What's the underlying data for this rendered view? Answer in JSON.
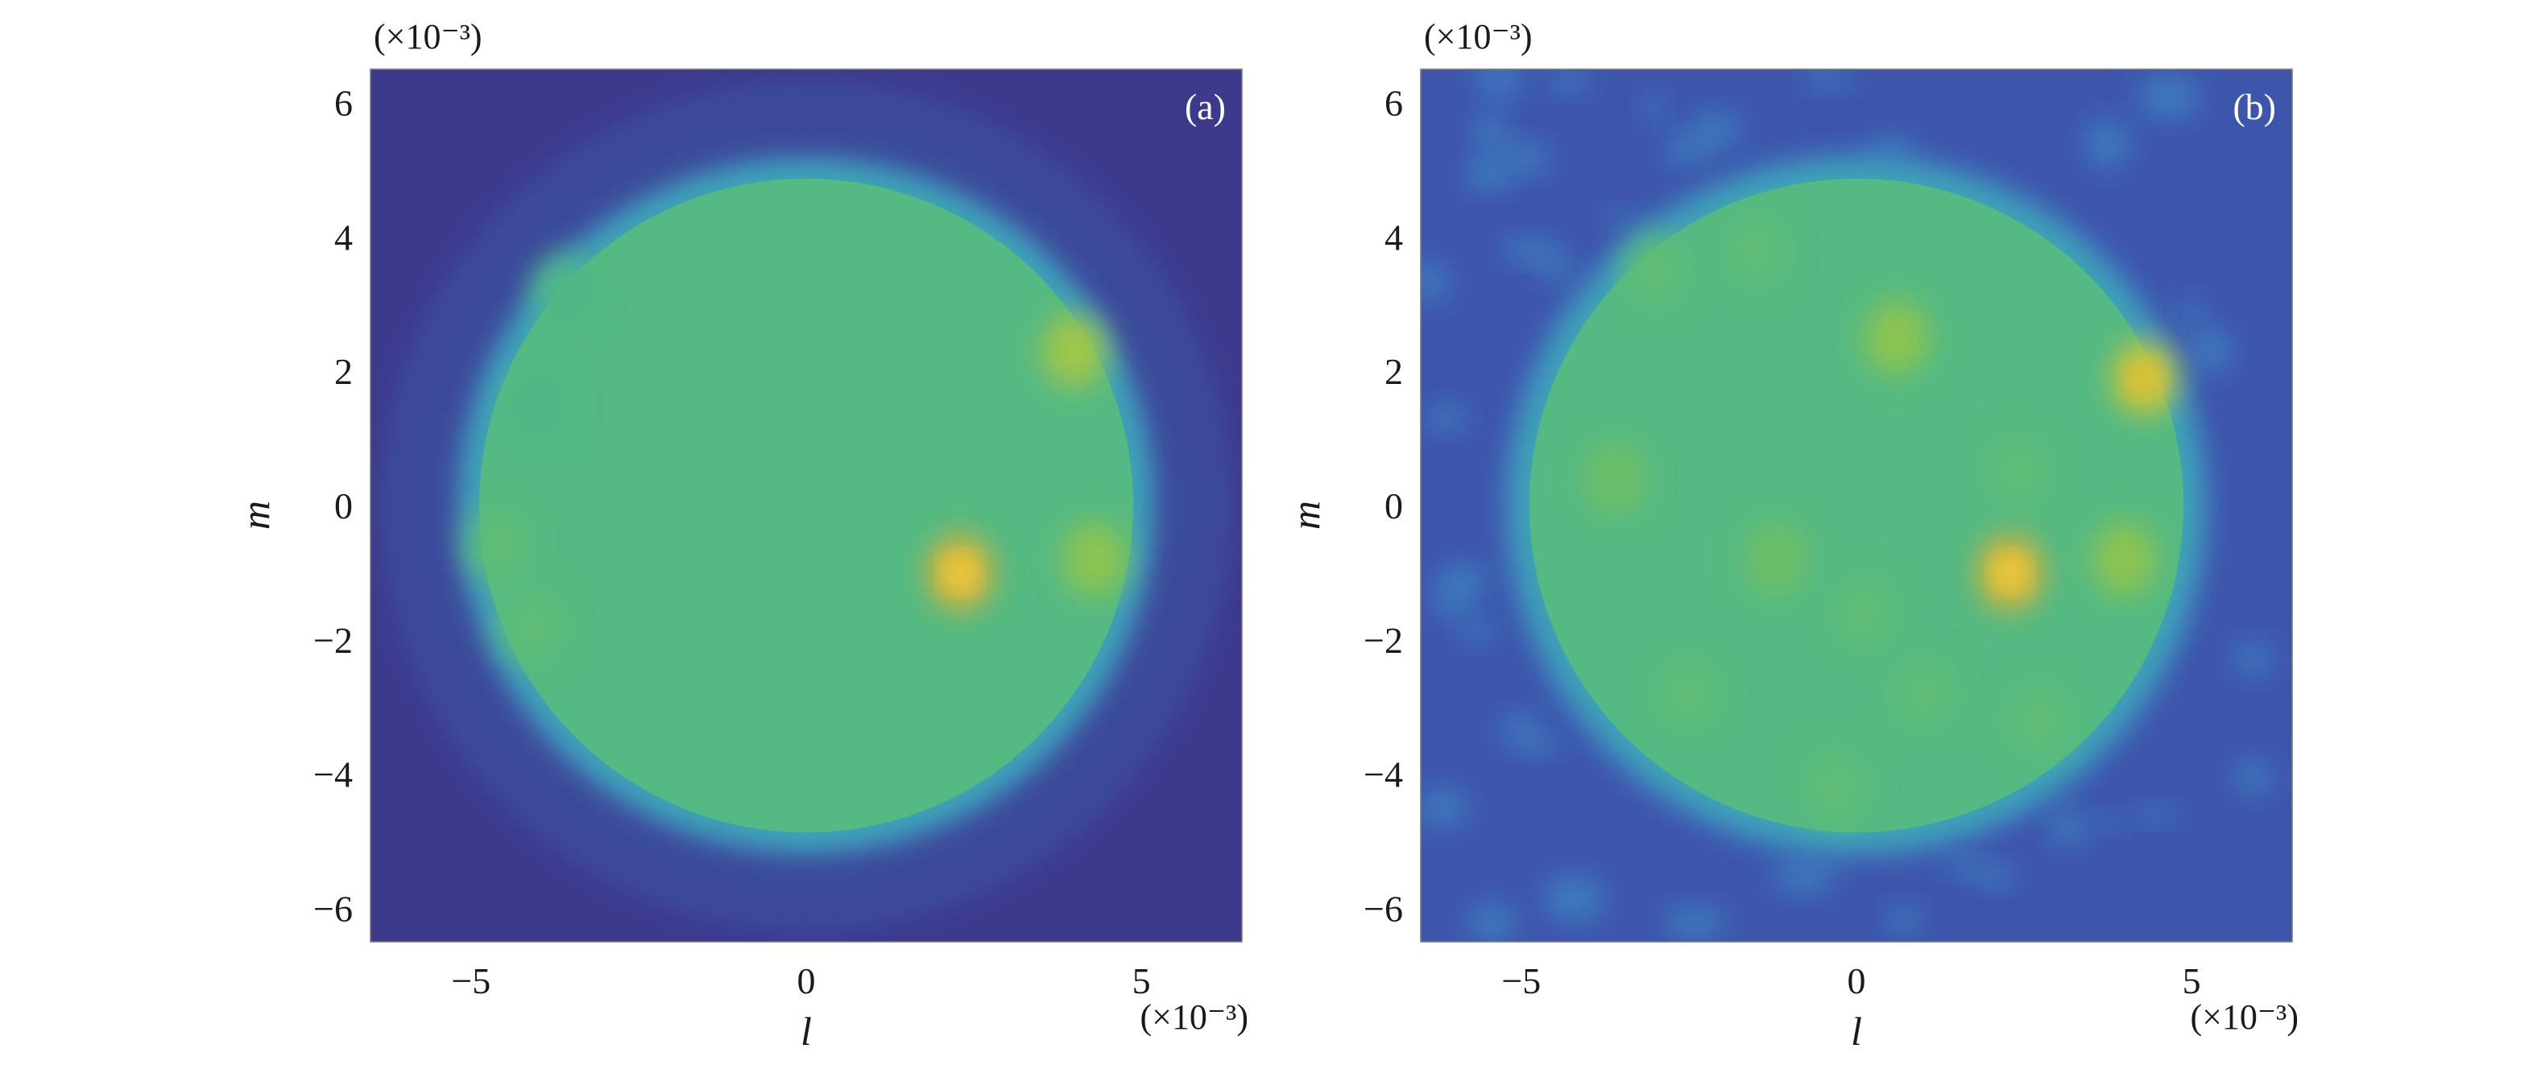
{
  "chart_data": [
    {
      "type": "heatmap",
      "panel_label": "(a)",
      "xlabel": "l",
      "ylabel": "m",
      "x_scale_label": "(×10⁻³)",
      "y_scale_label": "(×10⁻³)",
      "xlim": [
        -6.5,
        6.5
      ],
      "ylim": [
        -6.5,
        6.5
      ],
      "xticks": [
        -5,
        0,
        5
      ],
      "yticks": [
        6,
        4,
        2,
        0,
        -2,
        -4,
        -6
      ],
      "xtick_labels": [
        "−5",
        "0",
        "5"
      ],
      "ytick_labels": [
        "6",
        "4",
        "2",
        "0",
        "−2",
        "−4",
        "−6"
      ],
      "colormap": [
        "#3d3a8e",
        "#3f6bc4",
        "#3aa3c0",
        "#4cb78a",
        "#7fc455",
        "#c8c83a",
        "#f0a52a",
        "#fbe54a"
      ],
      "background_level": 0.0,
      "disk": {
        "center": [
          0,
          0
        ],
        "radius": 5.0,
        "level": 0.45
      },
      "rings": [
        5.6,
        6.1
      ],
      "hotspots": [
        {
          "x": 2.3,
          "y": -1.0,
          "level": 1.0
        },
        {
          "x": 4.0,
          "y": 2.3,
          "level": 0.8
        },
        {
          "x": 4.3,
          "y": -0.8,
          "level": 0.75
        },
        {
          "x": -4.6,
          "y": -0.6,
          "level": 0.6
        },
        {
          "x": -4.1,
          "y": -1.8,
          "level": 0.6
        },
        {
          "x": -3.6,
          "y": 3.2,
          "level": 0.55
        },
        {
          "x": -4.0,
          "y": 1.5,
          "level": 0.55
        }
      ]
    },
    {
      "type": "heatmap",
      "panel_label": "(b)",
      "xlabel": "l",
      "ylabel": "m",
      "x_scale_label": "(×10⁻³)",
      "y_scale_label": "(×10⁻³)",
      "xlim": [
        -6.5,
        6.5
      ],
      "ylim": [
        -6.5,
        6.5
      ],
      "xticks": [
        -5,
        0,
        5
      ],
      "yticks": [
        6,
        4,
        2,
        0,
        -2,
        -4,
        -6
      ],
      "xtick_labels": [
        "−5",
        "0",
        "5"
      ],
      "ytick_labels": [
        "6",
        "4",
        "2",
        "0",
        "−2",
        "−4",
        "−6"
      ],
      "colormap": [
        "#3d3a8e",
        "#3f6bc4",
        "#3aa3c0",
        "#4cb78a",
        "#7fc455",
        "#c8c83a",
        "#f0a52a",
        "#fbe54a"
      ],
      "background_level": 0.08,
      "disk": {
        "center": [
          0,
          0
        ],
        "radius": 5.0,
        "level": 0.45
      },
      "rings": [],
      "hotspots": [
        {
          "x": 2.3,
          "y": -1.0,
          "level": 1.0
        },
        {
          "x": 4.3,
          "y": 1.9,
          "level": 0.9
        },
        {
          "x": 0.6,
          "y": 2.5,
          "level": 0.75
        },
        {
          "x": 4.0,
          "y": -0.8,
          "level": 0.75
        },
        {
          "x": -1.2,
          "y": -0.8,
          "level": 0.65
        },
        {
          "x": -3.6,
          "y": 0.4,
          "level": 0.65
        },
        {
          "x": -3.0,
          "y": 3.5,
          "level": 0.6
        },
        {
          "x": -1.5,
          "y": 3.8,
          "level": 0.6
        },
        {
          "x": 0.1,
          "y": -1.6,
          "level": 0.6
        },
        {
          "x": -2.5,
          "y": -2.8,
          "level": 0.6
        },
        {
          "x": 1.0,
          "y": -2.8,
          "level": 0.6
        },
        {
          "x": 2.7,
          "y": -3.2,
          "level": 0.6
        },
        {
          "x": -0.3,
          "y": -4.2,
          "level": 0.6
        },
        {
          "x": 2.4,
          "y": 0.5,
          "level": 0.6
        }
      ]
    }
  ]
}
